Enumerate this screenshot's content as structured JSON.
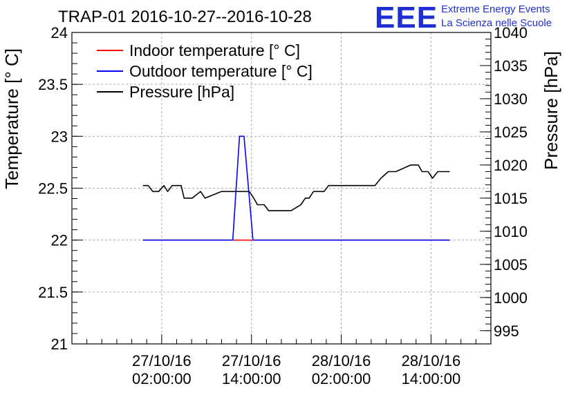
{
  "chart_data": {
    "type": "line",
    "title": "TRAP-01 2016-10-27--2016-10-28",
    "ylabel": "Temperature [° C]",
    "y2label": "Pressure [hPa]",
    "xlabel": "",
    "ylim": [
      21,
      24
    ],
    "y2lim": [
      993,
      1040
    ],
    "xlim": [
      -10,
      46
    ],
    "x_unit": "hours since 2016-10-27 00:00",
    "yticks": [
      "21",
      "21.5",
      "22",
      "22.5",
      "23",
      "23.5",
      "24"
    ],
    "y2ticks": [
      "995",
      "1000",
      "1005",
      "1010",
      "1015",
      "1020",
      "1025",
      "1030",
      "1035",
      "1040"
    ],
    "xticks": [
      {
        "x": 2,
        "line1": "27/10/16",
        "line2": "02:00:00"
      },
      {
        "x": 14,
        "line1": "27/10/16",
        "line2": "14:00:00"
      },
      {
        "x": 26,
        "line1": "28/10/16",
        "line2": "02:00:00"
      },
      {
        "x": 38,
        "line1": "28/10/16",
        "line2": "14:00:00"
      }
    ],
    "legend_position": "top-left",
    "series": [
      {
        "name": "Indoor temperature [° C]",
        "axis": "left",
        "color": "#ff0000",
        "x": [
          -0.5,
          40.5
        ],
        "y": [
          22.0,
          22.0
        ]
      },
      {
        "name": "Outdoor temperature [° C]",
        "axis": "left",
        "color": "#0000ff",
        "x": [
          -0.5,
          11.5,
          12.4,
          13.0,
          14.2,
          40.5
        ],
        "y": [
          22.0,
          22.0,
          23.0,
          23.0,
          22.0,
          22.0
        ]
      },
      {
        "name": "Pressure [hPa]",
        "axis": "right",
        "color": "#000000",
        "x": [
          -0.5,
          0.2,
          0.8,
          1.6,
          2.3,
          2.8,
          3.4,
          4.6,
          5.0,
          6.1,
          6.3,
          7.2,
          7.8,
          10.0,
          10.5,
          11.3,
          11.9,
          12.5,
          13.1,
          13.7,
          14.3,
          14.8,
          15.7,
          16.3,
          16.8,
          18.0,
          19.3,
          20.6,
          21.2,
          21.7,
          22.3,
          23.7,
          24.3,
          26.5,
          27.5,
          30.5,
          31.3,
          32.3,
          33.3,
          35.3,
          36.3,
          36.8,
          37.6,
          38.2,
          38.9,
          39.3,
          40.5
        ],
        "y": [
          1016.9,
          1016.9,
          1016.0,
          1016.0,
          1016.9,
          1016.0,
          1016.9,
          1016.9,
          1015.0,
          1015.0,
          1015.2,
          1016.0,
          1015.0,
          1016.0,
          1016.0,
          1016.0,
          1016.0,
          1016.0,
          1016.0,
          1016.0,
          1015.0,
          1014.0,
          1014.0,
          1013.1,
          1013.1,
          1013.1,
          1013.1,
          1014.0,
          1015.0,
          1015.0,
          1016.0,
          1016.0,
          1016.9,
          1016.9,
          1016.9,
          1016.9,
          1018.0,
          1019.0,
          1019.0,
          1020.0,
          1020.0,
          1019.0,
          1019.0,
          1018.0,
          1019.0,
          1019.0,
          1019.0
        ]
      }
    ]
  },
  "branding": {
    "logo_text": "EEE",
    "line1": "Extreme Energy Events",
    "line2": "La Scienza nelle Scuole"
  }
}
